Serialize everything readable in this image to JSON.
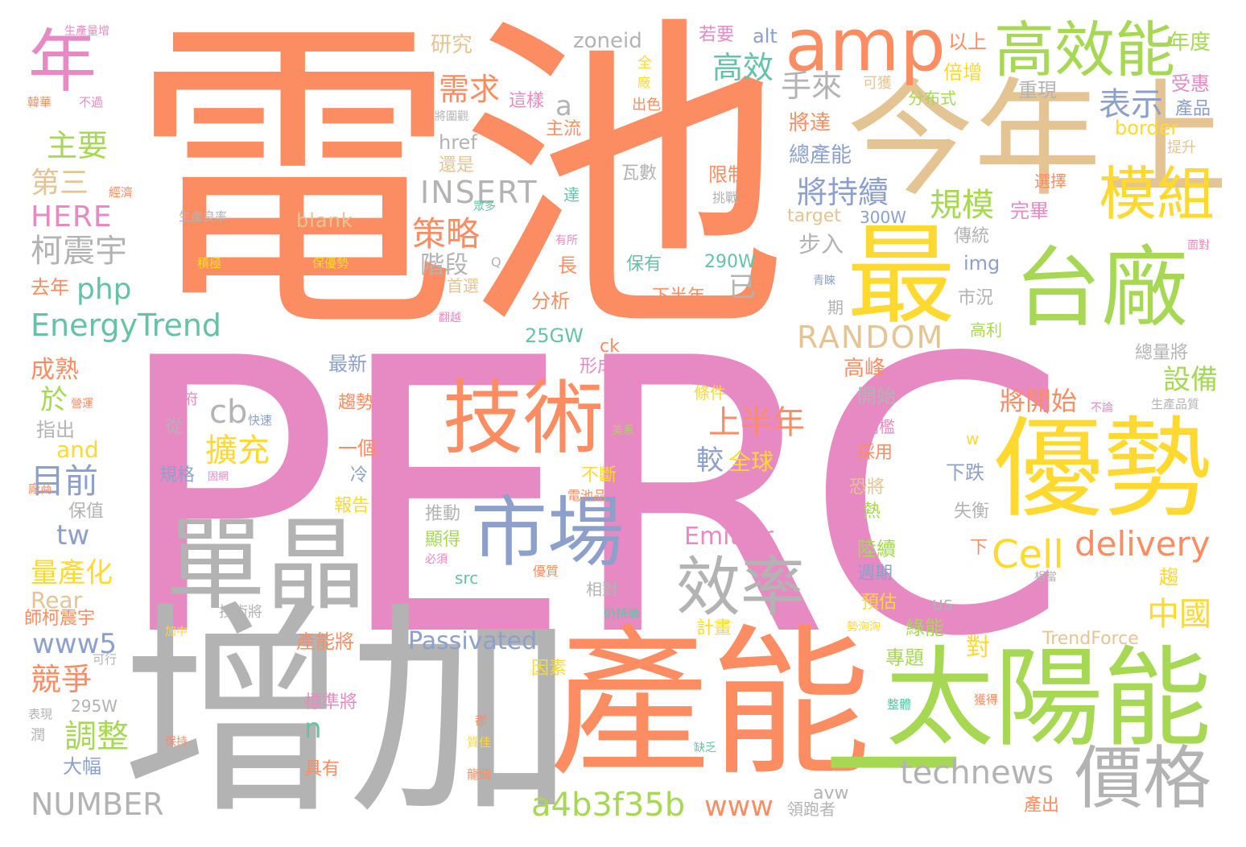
{
  "colors": {
    "orange": "#fc8d62",
    "pink": "#e78ac3",
    "gray": "#b3b3b3",
    "yellow": "#ffd92f",
    "tan": "#e5c494",
    "green": "#a6d854",
    "teal": "#66c2a5",
    "blue": "#8da0cb"
  },
  "words": [
    {
      "text": "PERC",
      "color": "pink"
    },
    {
      "text": "電池",
      "color": "orange"
    },
    {
      "text": "增加",
      "color": "gray"
    },
    {
      "text": "產能",
      "color": "orange"
    },
    {
      "text": "今年上",
      "color": "tan"
    },
    {
      "text": "太陽能",
      "color": "green"
    },
    {
      "text": "優勢",
      "color": "yellow"
    },
    {
      "text": "台廠",
      "color": "green"
    },
    {
      "text": "最",
      "color": "yellow"
    },
    {
      "text": "技術",
      "color": "orange"
    },
    {
      "text": "單晶",
      "color": "gray"
    },
    {
      "text": "市場",
      "color": "blue"
    },
    {
      "text": "amp",
      "color": "orange"
    },
    {
      "text": "高效能",
      "color": "green"
    },
    {
      "text": "年",
      "color": "pink"
    },
    {
      "text": "模組",
      "color": "yellow"
    },
    {
      "text": "價格",
      "color": "gray"
    },
    {
      "text": "效率",
      "color": "gray"
    },
    {
      "text": "一",
      "color": "green"
    },
    {
      "text": "Cell",
      "color": "yellow"
    },
    {
      "text": "delivery",
      "color": "orange"
    },
    {
      "text": "technews",
      "color": "gray"
    },
    {
      "text": "a4b3f35b",
      "color": "green"
    },
    {
      "text": "www",
      "color": "orange"
    },
    {
      "text": "NUMBER",
      "color": "gray"
    },
    {
      "text": "EnergyTrend",
      "color": "teal"
    },
    {
      "text": "RANDOM",
      "color": "tan"
    },
    {
      "text": "INSERT",
      "color": "gray"
    },
    {
      "text": "HERE",
      "color": "pink"
    },
    {
      "text": "php",
      "color": "teal"
    },
    {
      "text": "柯震宇",
      "color": "gray"
    },
    {
      "text": "主要",
      "color": "green"
    },
    {
      "text": "第三",
      "color": "tan"
    },
    {
      "text": "需求",
      "color": "orange"
    },
    {
      "text": "高效",
      "color": "teal"
    },
    {
      "text": "手來",
      "color": "gray"
    },
    {
      "text": "表示",
      "color": "blue"
    },
    {
      "text": "將持續",
      "color": "blue"
    },
    {
      "text": "規模",
      "color": "green"
    },
    {
      "text": "策略",
      "color": "orange"
    },
    {
      "text": "階段",
      "color": "gray"
    },
    {
      "text": "上半年",
      "color": "orange"
    },
    {
      "text": "擴充",
      "color": "yellow"
    },
    {
      "text": "目前",
      "color": "blue"
    },
    {
      "text": "調整",
      "color": "green"
    },
    {
      "text": "競爭",
      "color": "orange"
    },
    {
      "text": "量產化",
      "color": "yellow"
    },
    {
      "text": "www5",
      "color": "blue"
    },
    {
      "text": "Passivated",
      "color": "blue"
    },
    {
      "text": "Emitter",
      "color": "pink"
    },
    {
      "text": "Rear",
      "color": "tan"
    },
    {
      "text": "將開始",
      "color": "orange"
    },
    {
      "text": "設備",
      "color": "green"
    },
    {
      "text": "中國",
      "color": "yellow"
    },
    {
      "text": "a",
      "color": "gray"
    },
    {
      "text": "cb",
      "color": "gray"
    },
    {
      "text": "tw",
      "color": "blue"
    },
    {
      "text": "n",
      "color": "teal"
    },
    {
      "text": "較",
      "color": "blue"
    },
    {
      "text": "全球",
      "color": "yellow"
    },
    {
      "text": "已",
      "color": "gray"
    },
    {
      "text": "於",
      "color": "green"
    },
    {
      "text": "and",
      "color": "yellow"
    },
    {
      "text": "zoneid",
      "color": "gray"
    },
    {
      "text": "研究",
      "color": "tan"
    },
    {
      "text": "若要",
      "color": "pink"
    },
    {
      "text": "alt",
      "color": "blue"
    },
    {
      "text": "以上",
      "color": "orange"
    },
    {
      "text": "年度",
      "color": "green"
    },
    {
      "text": "倍增",
      "color": "yellow"
    },
    {
      "text": "受惠",
      "color": "pink"
    },
    {
      "text": "重現",
      "color": "gray"
    },
    {
      "text": "產品",
      "color": "blue"
    },
    {
      "text": "border",
      "color": "yellow"
    },
    {
      "text": "分布式",
      "color": "green"
    },
    {
      "text": "可獲",
      "color": "tan"
    },
    {
      "text": "這樣",
      "color": "pink"
    },
    {
      "text": "主流",
      "color": "orange"
    },
    {
      "text": "出色",
      "color": "orange"
    },
    {
      "text": "href",
      "color": "gray"
    },
    {
      "text": "還是",
      "color": "tan"
    },
    {
      "text": "將達",
      "color": "orange"
    },
    {
      "text": "總產能",
      "color": "blue"
    },
    {
      "text": "瓦數",
      "color": "gray"
    },
    {
      "text": "限制",
      "color": "orange"
    },
    {
      "text": "挑戰",
      "color": "gray"
    },
    {
      "text": "選擇",
      "color": "orange"
    },
    {
      "text": "提升",
      "color": "tan"
    },
    {
      "text": "完畢",
      "color": "pink"
    },
    {
      "text": "target",
      "color": "tan"
    },
    {
      "text": "300W",
      "color": "blue"
    },
    {
      "text": "blank",
      "color": "tan"
    },
    {
      "text": "傳統",
      "color": "gray"
    },
    {
      "text": "步入",
      "color": "gray"
    },
    {
      "text": "img",
      "color": "blue"
    },
    {
      "text": "290W",
      "color": "teal"
    },
    {
      "text": "保有",
      "color": "teal"
    },
    {
      "text": "長",
      "color": "orange"
    },
    {
      "text": "下半年",
      "color": "orange"
    },
    {
      "text": "分析",
      "color": "orange"
    },
    {
      "text": "首選",
      "color": "tan"
    },
    {
      "text": "去年",
      "color": "orange"
    },
    {
      "text": "25GW",
      "color": "teal"
    },
    {
      "text": "ck",
      "color": "orange"
    },
    {
      "text": "形成",
      "color": "pink"
    },
    {
      "text": "最新",
      "color": "blue"
    },
    {
      "text": "高峰",
      "color": "orange"
    },
    {
      "text": "開始",
      "color": "gray"
    },
    {
      "text": "高利",
      "color": "green"
    },
    {
      "text": "市況",
      "color": "gray"
    },
    {
      "text": "總量將",
      "color": "gray"
    },
    {
      "text": "成熟",
      "color": "orange"
    },
    {
      "text": "趨勢",
      "color": "orange"
    },
    {
      "text": "政府",
      "color": "pink"
    },
    {
      "text": "條件",
      "color": "yellow"
    },
    {
      "text": "門檻",
      "color": "pink"
    },
    {
      "text": "採用",
      "color": "orange"
    },
    {
      "text": "下跌",
      "color": "blue"
    },
    {
      "text": "指出",
      "color": "gray"
    },
    {
      "text": "從",
      "color": "gray"
    },
    {
      "text": "一個",
      "color": "orange"
    },
    {
      "text": "規格",
      "color": "blue"
    },
    {
      "text": "冷",
      "color": "blue"
    },
    {
      "text": "不斷",
      "color": "yellow"
    },
    {
      "text": "恐將",
      "color": "tan"
    },
    {
      "text": "失衡",
      "color": "gray"
    },
    {
      "text": "熱",
      "color": "green"
    },
    {
      "text": "推動",
      "color": "gray"
    },
    {
      "text": "保值",
      "color": "gray"
    },
    {
      "text": "報告",
      "color": "yellow"
    },
    {
      "text": "顯得",
      "color": "green"
    },
    {
      "text": "陸續",
      "color": "green"
    },
    {
      "text": "週期",
      "color": "blue"
    },
    {
      "text": "src",
      "color": "teal"
    },
    {
      "text": "相對",
      "color": "gray"
    },
    {
      "text": "預估",
      "color": "yellow"
    },
    {
      "text": "us",
      "color": "gray"
    },
    {
      "text": "計畫",
      "color": "yellow"
    },
    {
      "text": "產能將",
      "color": "orange"
    },
    {
      "text": "綠能",
      "color": "green"
    },
    {
      "text": "對",
      "color": "yellow"
    },
    {
      "text": "專題",
      "color": "green"
    },
    {
      "text": "因素",
      "color": "yellow"
    },
    {
      "text": "師柯震宇",
      "color": "orange"
    },
    {
      "text": "TrendForce",
      "color": "tan"
    },
    {
      "text": "295W",
      "color": "gray"
    },
    {
      "text": "標準將",
      "color": "pink"
    },
    {
      "text": "大幅",
      "color": "blue"
    },
    {
      "text": "具有",
      "color": "orange"
    },
    {
      "text": "avw",
      "color": "gray"
    },
    {
      "text": "領跑者",
      "color": "gray"
    },
    {
      "text": "產出",
      "color": "orange"
    },
    {
      "text": "生產量增",
      "color": "pink"
    },
    {
      "text": "韓華",
      "color": "orange"
    },
    {
      "text": "不過",
      "color": "pink"
    },
    {
      "text": "將圍觀",
      "color": "gray"
    },
    {
      "text": "經濟",
      "color": "orange"
    },
    {
      "text": "生產良率",
      "color": "gray"
    },
    {
      "text": "積極",
      "color": "yellow"
    },
    {
      "text": "保優勢",
      "color": "yellow"
    },
    {
      "text": "有所",
      "color": "pink"
    },
    {
      "text": "眾多",
      "color": "teal"
    },
    {
      "text": "達",
      "color": "teal"
    },
    {
      "text": "青睞",
      "color": "blue"
    },
    {
      "text": "期",
      "color": "gray"
    },
    {
      "text": "面對",
      "color": "pink"
    },
    {
      "text": "不論",
      "color": "pink"
    },
    {
      "text": "生產品質",
      "color": "gray"
    },
    {
      "text": "營運",
      "color": "orange"
    },
    {
      "text": "快速",
      "color": "blue"
    },
    {
      "text": "美系",
      "color": "green"
    },
    {
      "text": "w",
      "color": "yellow"
    },
    {
      "text": "廠商",
      "color": "orange"
    },
    {
      "text": "固網",
      "color": "pink"
    },
    {
      "text": "電池品",
      "color": "orange"
    },
    {
      "text": "必須",
      "color": "pink"
    },
    {
      "text": "優質",
      "color": "orange"
    },
    {
      "text": "相當",
      "color": "gray"
    },
    {
      "text": "技術將",
      "color": "gray"
    },
    {
      "text": "仍持續",
      "color": "teal"
    },
    {
      "text": "勢洶洶",
      "color": "yellow"
    },
    {
      "text": "加中",
      "color": "yellow"
    },
    {
      "text": "可行",
      "color": "gray"
    },
    {
      "text": "表現",
      "color": "gray"
    },
    {
      "text": "潤",
      "color": "gray"
    },
    {
      "text": "保持",
      "color": "orange"
    },
    {
      "text": "都",
      "color": "orange"
    },
    {
      "text": "質佳",
      "color": "yellow"
    },
    {
      "text": "龍頭",
      "color": "orange"
    },
    {
      "text": "缺乏",
      "color": "teal"
    },
    {
      "text": "整體",
      "color": "teal"
    },
    {
      "text": "獲得",
      "color": "orange"
    },
    {
      "text": "全",
      "color": "yellow"
    },
    {
      "text": "廠",
      "color": "yellow"
    },
    {
      "text": "Q",
      "color": "gray"
    },
    {
      "text": "翻越",
      "color": "pink"
    },
    {
      "text": "下",
      "color": "orange"
    },
    {
      "text": "趨",
      "color": "yellow"
    }
  ]
}
